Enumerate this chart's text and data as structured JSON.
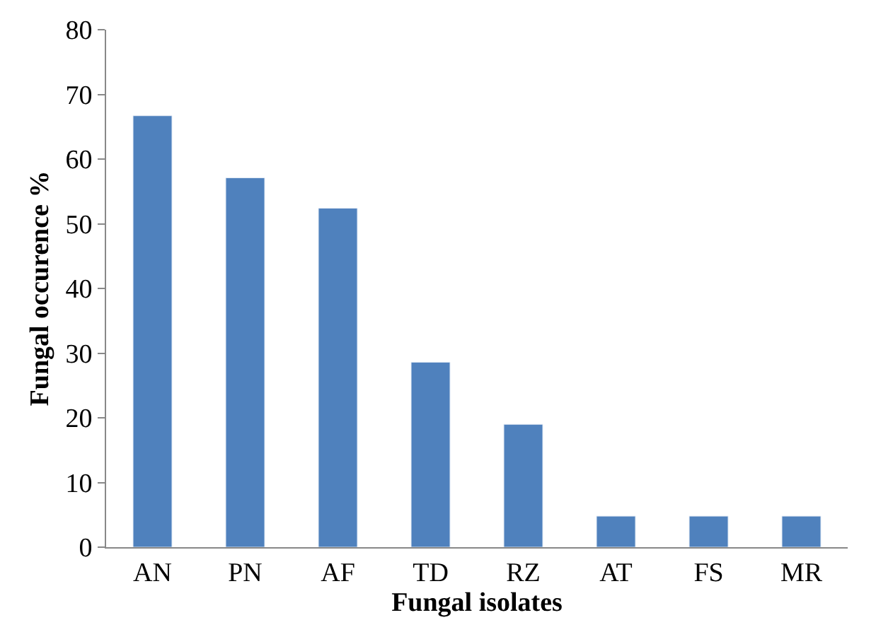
{
  "chart_data": {
    "type": "bar",
    "xlabel": "Fungal isolates",
    "ylabel": "Fungal occurence %",
    "categories": [
      "AN",
      "PN",
      "AF",
      "TD",
      "RZ",
      "AT",
      "FS",
      "MR"
    ],
    "values": [
      66.7,
      57.1,
      52.4,
      28.6,
      19.0,
      4.8,
      4.8,
      4.8
    ],
    "color": "#4f81bd",
    "ylim": [
      0,
      80
    ],
    "yticks": [
      0,
      10,
      20,
      30,
      40,
      50,
      60,
      70,
      80
    ]
  }
}
